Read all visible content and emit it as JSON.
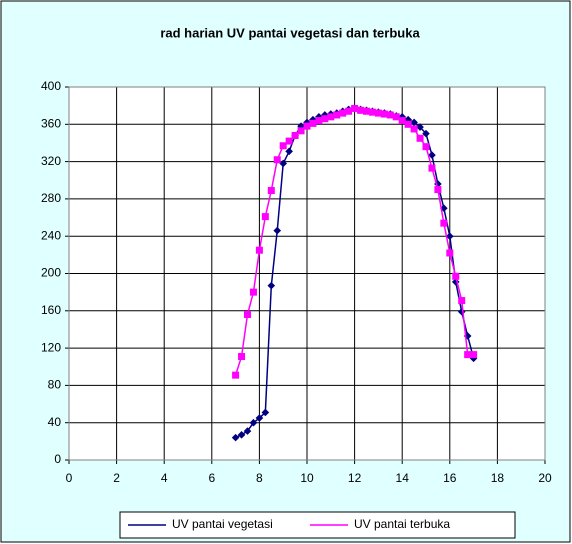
{
  "chart_data": {
    "type": "line",
    "title": "rad harian UV pantai vegetasi dan terbuka",
    "x": [
      7,
      7.25,
      7.5,
      7.75,
      8,
      8.25,
      8.5,
      8.75,
      9,
      9.25,
      9.5,
      9.75,
      10,
      10.25,
      10.5,
      10.75,
      11,
      11.25,
      11.5,
      11.75,
      12,
      12.25,
      12.5,
      12.75,
      13,
      13.25,
      13.5,
      13.75,
      14,
      14.25,
      14.5,
      14.75,
      15,
      15.25,
      15.5,
      15.75,
      16,
      16.25,
      16.5,
      16.75,
      17
    ],
    "series": [
      {
        "name": "UV pantai vegetasi",
        "color": "#000080",
        "marker": "diamond",
        "values": [
          24,
          27,
          31,
          40,
          45,
          51,
          187,
          246,
          318,
          331,
          348,
          358,
          362,
          365,
          368,
          370,
          371,
          372,
          374,
          376,
          377,
          376,
          375,
          374,
          373,
          372,
          371,
          369,
          368,
          365,
          362,
          357,
          350,
          327,
          296,
          270,
          240,
          191,
          159,
          133,
          109
        ]
      },
      {
        "name": "UV pantai terbuka",
        "color": "#ff00ff",
        "marker": "square",
        "values": [
          91,
          111,
          156,
          180,
          225,
          261,
          289,
          322,
          337,
          342,
          348,
          353,
          358,
          361,
          364,
          366,
          368,
          370,
          372,
          374,
          377,
          375,
          374,
          373,
          372,
          371,
          370,
          368,
          364,
          360,
          355,
          345,
          336,
          313,
          290,
          254,
          222,
          197,
          171,
          113,
          113
        ]
      }
    ],
    "xlim": [
      0,
      20
    ],
    "xticks": [
      0,
      2,
      4,
      6,
      8,
      10,
      12,
      14,
      16,
      18,
      20
    ],
    "ylim": [
      0,
      400
    ],
    "yticks": [
      0,
      40,
      80,
      120,
      160,
      200,
      240,
      280,
      320,
      360,
      400
    ],
    "grid": true,
    "legend": "bottom"
  }
}
